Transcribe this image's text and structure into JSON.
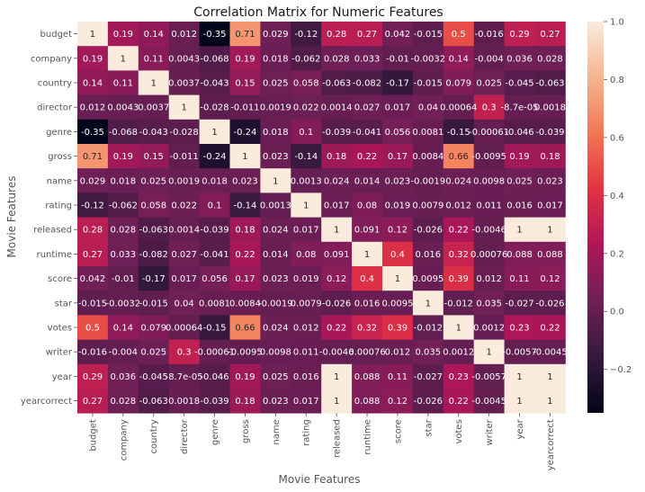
{
  "chart_data": {
    "type": "heatmap",
    "title": "Correlation Matrix for Numeric Features",
    "xlabel": "Movie Features",
    "ylabel": "Movie Features",
    "row_labels": [
      "budget",
      "company",
      "country",
      "director",
      "genre",
      "gross",
      "name",
      "rating",
      "released",
      "runtime",
      "score",
      "star",
      "votes",
      "writer",
      "year",
      "yearcorrect"
    ],
    "col_labels": [
      "budget",
      "company",
      "country",
      "director",
      "genre",
      "gross",
      "name",
      "rating",
      "released",
      "runtime",
      "score",
      "star",
      "votes",
      "writer",
      "year",
      "yearcorrect"
    ],
    "values": [
      [
        1,
        0.19,
        0.14,
        0.012,
        -0.35,
        0.71,
        0.029,
        -0.12,
        0.28,
        0.27,
        0.042,
        -0.015,
        0.5,
        -0.016,
        0.29,
        0.27
      ],
      [
        0.19,
        1,
        0.11,
        0.0043,
        -0.068,
        0.19,
        0.018,
        -0.062,
        0.028,
        0.033,
        -0.01,
        -0.0032,
        0.14,
        -0.004,
        0.036,
        0.028
      ],
      [
        0.14,
        0.11,
        1,
        0.0037,
        -0.043,
        0.15,
        0.025,
        0.058,
        -0.063,
        -0.082,
        -0.17,
        -0.015,
        0.079,
        0.025,
        -0.045,
        -0.063
      ],
      [
        0.012,
        0.0043,
        0.0037,
        1,
        -0.028,
        -0.011,
        0.0019,
        0.022,
        0.0014,
        0.027,
        0.017,
        0.04,
        0.00064,
        0.3,
        -8.7e-05,
        0.0018
      ],
      [
        -0.35,
        -0.068,
        -0.043,
        -0.028,
        1,
        -0.24,
        0.018,
        0.1,
        -0.039,
        -0.041,
        0.056,
        0.0081,
        -0.15,
        -0.00061,
        -0.046,
        -0.039
      ],
      [
        0.71,
        0.19,
        0.15,
        -0.011,
        -0.24,
        1,
        0.023,
        -0.14,
        0.18,
        0.22,
        0.17,
        0.0084,
        0.66,
        -0.0095,
        0.19,
        0.18
      ],
      [
        0.029,
        0.018,
        0.025,
        0.0019,
        0.018,
        0.023,
        1,
        0.0013,
        0.024,
        0.014,
        0.023,
        -0.0019,
        0.024,
        0.0098,
        0.025,
        0.023
      ],
      [
        -0.12,
        -0.062,
        0.058,
        0.022,
        0.1,
        -0.14,
        0.0013,
        1,
        0.017,
        0.08,
        0.019,
        0.0079,
        0.012,
        0.011,
        0.016,
        0.017
      ],
      [
        0.28,
        0.028,
        -0.063,
        0.0014,
        -0.039,
        0.18,
        0.024,
        0.017,
        1,
        0.091,
        0.12,
        -0.026,
        0.22,
        -0.0046,
        1,
        1
      ],
      [
        0.27,
        0.033,
        -0.082,
        0.027,
        -0.041,
        0.22,
        0.014,
        0.08,
        0.091,
        1,
        0.4,
        0.016,
        0.32,
        0.00076,
        0.088,
        0.088
      ],
      [
        0.042,
        -0.01,
        -0.17,
        0.017,
        0.056,
        0.17,
        0.023,
        0.019,
        0.12,
        0.4,
        1,
        0.0095,
        0.39,
        0.012,
        0.11,
        0.12
      ],
      [
        -0.015,
        -0.0032,
        -0.015,
        0.04,
        0.0081,
        0.0084,
        -0.0019,
        0.0079,
        -0.026,
        0.016,
        0.0095,
        1,
        -0.012,
        0.035,
        -0.027,
        -0.026
      ],
      [
        0.5,
        0.14,
        0.079,
        0.00064,
        -0.15,
        0.66,
        0.024,
        0.012,
        0.22,
        0.32,
        0.39,
        -0.012,
        1,
        0.0012,
        0.23,
        0.22
      ],
      [
        -0.016,
        -0.004,
        0.025,
        0.3,
        -0.00061,
        -0.0095,
        0.0098,
        0.011,
        -0.0046,
        0.00076,
        0.012,
        0.035,
        0.0012,
        1,
        -0.0057,
        -0.0045
      ],
      [
        0.29,
        0.036,
        -0.045,
        -8.7e-05,
        -0.046,
        0.19,
        0.025,
        0.016,
        1,
        0.088,
        0.11,
        -0.027,
        0.23,
        -0.0057,
        1,
        1
      ],
      [
        0.27,
        0.028,
        -0.063,
        0.0018,
        -0.039,
        0.18,
        0.023,
        0.017,
        1,
        0.088,
        0.12,
        -0.026,
        0.22,
        -0.0045,
        1,
        1
      ]
    ],
    "cell_labels": [
      [
        "1",
        "0.19",
        "0.14",
        "0.012",
        "-0.35",
        "0.71",
        "0.029",
        "-0.12",
        "0.28",
        "0.27",
        "0.042",
        "-0.015",
        "0.5",
        "-0.016",
        "0.29",
        "0.27"
      ],
      [
        "0.19",
        "1",
        "0.11",
        "0.0043",
        "-0.068",
        "0.19",
        "0.018",
        "-0.062",
        "0.028",
        "0.033",
        "-0.01",
        "-0.0032",
        "0.14",
        "-0.004",
        "0.036",
        "0.028"
      ],
      [
        "0.14",
        "0.11",
        "1",
        "0.0037",
        "-0.043",
        "0.15",
        "0.025",
        "0.058",
        "-0.063",
        "-0.082",
        "-0.17",
        "-0.015",
        "0.079",
        "0.025",
        "-0.045",
        "-0.063"
      ],
      [
        "0.012",
        "0.0043",
        "0.0037",
        "1",
        "-0.028",
        "-0.011",
        "0.0019",
        "0.022",
        "0.0014",
        "0.027",
        "0.017",
        "0.04",
        "0.00064",
        "0.3",
        "-8.7e-05",
        "0.0018"
      ],
      [
        "-0.35",
        "-0.068",
        "-0.043",
        "-0.028",
        "1",
        "-0.24",
        "0.018",
        "0.1",
        "-0.039",
        "-0.041",
        "0.056",
        "0.0081",
        "-0.15",
        "-0.00061",
        "-0.046",
        "-0.039"
      ],
      [
        "0.71",
        "0.19",
        "0.15",
        "-0.011",
        "-0.24",
        "1",
        "0.023",
        "-0.14",
        "0.18",
        "0.22",
        "0.17",
        "0.0084",
        "0.66",
        "-0.0095",
        "0.19",
        "0.18"
      ],
      [
        "0.029",
        "0.018",
        "0.025",
        "0.0019",
        "0.018",
        "0.023",
        "1",
        "0.0013",
        "0.024",
        "0.014",
        "0.023",
        "-0.0019",
        "0.024",
        "0.0098",
        "0.025",
        "0.023"
      ],
      [
        "-0.12",
        "-0.062",
        "0.058",
        "0.022",
        "0.1",
        "-0.14",
        "0.0013",
        "1",
        "0.017",
        "0.08",
        "0.019",
        "0.0079",
        "0.012",
        "0.011",
        "0.016",
        "0.017"
      ],
      [
        "0.28",
        "0.028",
        "-0.063",
        "0.0014",
        "-0.039",
        "0.18",
        "0.024",
        "0.017",
        "1",
        "0.091",
        "0.12",
        "-0.026",
        "0.22",
        "-0.0046",
        "1",
        "1"
      ],
      [
        "0.27",
        "0.033",
        "-0.082",
        "0.027",
        "-0.041",
        "0.22",
        "0.014",
        "0.08",
        "0.091",
        "1",
        "0.4",
        "0.016",
        "0.32",
        "0.00076",
        "0.088",
        "0.088"
      ],
      [
        "0.042",
        "-0.01",
        "-0.17",
        "0.017",
        "0.056",
        "0.17",
        "0.023",
        "0.019",
        "0.12",
        "0.4",
        "1",
        "0.0095",
        "0.39",
        "0.012",
        "0.11",
        "0.12"
      ],
      [
        "-0.015",
        "-0.0032",
        "-0.015",
        "0.04",
        "0.0081",
        "0.0084",
        "-0.0019",
        "0.0079",
        "-0.026",
        "0.016",
        "0.0095",
        "1",
        "-0.012",
        "0.035",
        "-0.027",
        "-0.026"
      ],
      [
        "0.5",
        "0.14",
        "0.079",
        "0.00064",
        "-0.15",
        "0.66",
        "0.024",
        "0.012",
        "0.22",
        "0.32",
        "0.39",
        "-0.012",
        "1",
        "0.0012",
        "0.23",
        "0.22"
      ],
      [
        "-0.016",
        "-0.004",
        "0.025",
        "0.3",
        "-0.00061",
        "-0.0095",
        "0.0098",
        "0.011",
        "-0.0046",
        "0.00076",
        "0.012",
        "0.035",
        "0.0012",
        "1",
        "-0.0057",
        "-0.0045"
      ],
      [
        "0.29",
        "0.036",
        "-0.045",
        "-8.7e-05",
        "-0.046",
        "0.19",
        "0.025",
        "0.016",
        "1",
        "0.088",
        "0.11",
        "-0.027",
        "0.23",
        "-0.0057",
        "1",
        "1"
      ],
      [
        "0.27",
        "0.028",
        "-0.063",
        "0.0018",
        "-0.039",
        "0.18",
        "0.023",
        "0.017",
        "1",
        "0.088",
        "0.12",
        "-0.026",
        "0.22",
        "-0.0045",
        "1",
        "1"
      ]
    ],
    "colorbar": {
      "range": [
        -0.35,
        1
      ],
      "ticks": [
        -0.2,
        0,
        0.2,
        0.4,
        0.6,
        0.8,
        1
      ],
      "tick_labels": [
        "−0.2",
        "0.0",
        "0.2",
        "0.4",
        "0.6",
        "0.8",
        "1.0"
      ],
      "colormap": "rocket",
      "stops": [
        "#03051a",
        "#35193e",
        "#701f57",
        "#ad1759",
        "#e13342",
        "#f37651",
        "#f6b48f",
        "#faebdd"
      ]
    },
    "grid": false,
    "legend": "colorbar-right"
  }
}
